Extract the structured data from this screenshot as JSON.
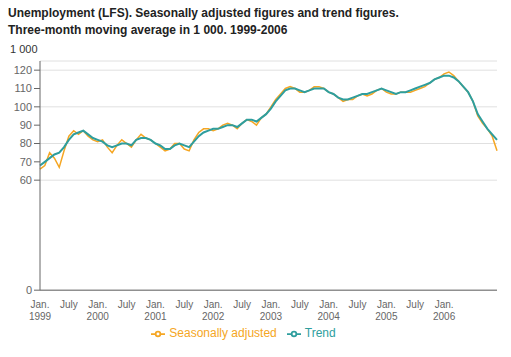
{
  "chart_data": {
    "type": "line",
    "title": "Unemployment (LFS). Seasonally adjusted figures and trend figures.",
    "subtitle": "Three-month moving average in 1 000. 1999-2006",
    "y_label": "1 000",
    "categories": [
      "Jan.\n1999",
      null,
      null,
      null,
      null,
      null,
      "July",
      null,
      null,
      null,
      null,
      null,
      "Jan.\n2000",
      null,
      null,
      null,
      null,
      null,
      "July",
      null,
      null,
      null,
      null,
      null,
      "Jan.\n2001",
      null,
      null,
      null,
      null,
      null,
      "July",
      null,
      null,
      null,
      null,
      null,
      "Jan.\n2002",
      null,
      null,
      null,
      null,
      null,
      "July",
      null,
      null,
      null,
      null,
      null,
      "Jan.\n2003",
      null,
      null,
      null,
      null,
      null,
      "July",
      null,
      null,
      null,
      null,
      null,
      "Jan.\n2004",
      null,
      null,
      null,
      null,
      null,
      "July",
      null,
      null,
      null,
      null,
      null,
      "Jan.\n2005",
      null,
      null,
      null,
      null,
      null,
      "July",
      null,
      null,
      null,
      null,
      null,
      "Jan.\n2006",
      null,
      null,
      null,
      null,
      null,
      null,
      null,
      null,
      null,
      null,
      null
    ],
    "series": [
      {
        "name": "Seasonally adjusted",
        "color": "#F5A623",
        "values": [
          66,
          68,
          75,
          72,
          67,
          76,
          84,
          87,
          85,
          87,
          84,
          82,
          81,
          82,
          78,
          75,
          79,
          82,
          80,
          78,
          82,
          85,
          83,
          82,
          80,
          78,
          76,
          77,
          80,
          80,
          77,
          76,
          82,
          86,
          88,
          88,
          87,
          88,
          90,
          91,
          90,
          88,
          91,
          93,
          92,
          90,
          94,
          96,
          100,
          104,
          107,
          110,
          111,
          110,
          108,
          108,
          109,
          111,
          111,
          110,
          108,
          107,
          105,
          103,
          104,
          104,
          106,
          107,
          106,
          107,
          109,
          110,
          108,
          107,
          107,
          108,
          108,
          108,
          109,
          110,
          111,
          113,
          115,
          116,
          118,
          119,
          117,
          114,
          111,
          108,
          103,
          95,
          91,
          88,
          84,
          76
        ]
      },
      {
        "name": "Trend",
        "color": "#2E9E9E",
        "values": [
          68,
          70,
          72,
          74,
          75,
          78,
          82,
          85,
          86,
          87,
          85,
          83,
          82,
          81,
          79,
          78,
          79,
          80,
          80,
          79,
          82,
          83,
          83,
          82,
          80,
          79,
          77,
          77,
          79,
          80,
          79,
          78,
          81,
          84,
          86,
          87,
          88,
          88,
          89,
          90,
          90,
          89,
          91,
          93,
          93,
          92,
          94,
          96,
          99,
          103,
          106,
          109,
          110,
          110,
          109,
          108,
          109,
          110,
          110,
          110,
          108,
          107,
          105,
          104,
          104,
          105,
          106,
          107,
          107,
          108,
          109,
          110,
          109,
          108,
          107,
          108,
          108,
          109,
          110,
          111,
          112,
          113,
          115,
          116,
          117,
          117,
          116,
          114,
          111,
          108,
          103,
          96,
          92,
          88,
          85,
          82
        ]
      }
    ],
    "ylim": [
      0,
      125
    ],
    "yticks": [
      0,
      60,
      70,
      80,
      90,
      100,
      110,
      120
    ],
    "grid": true
  }
}
